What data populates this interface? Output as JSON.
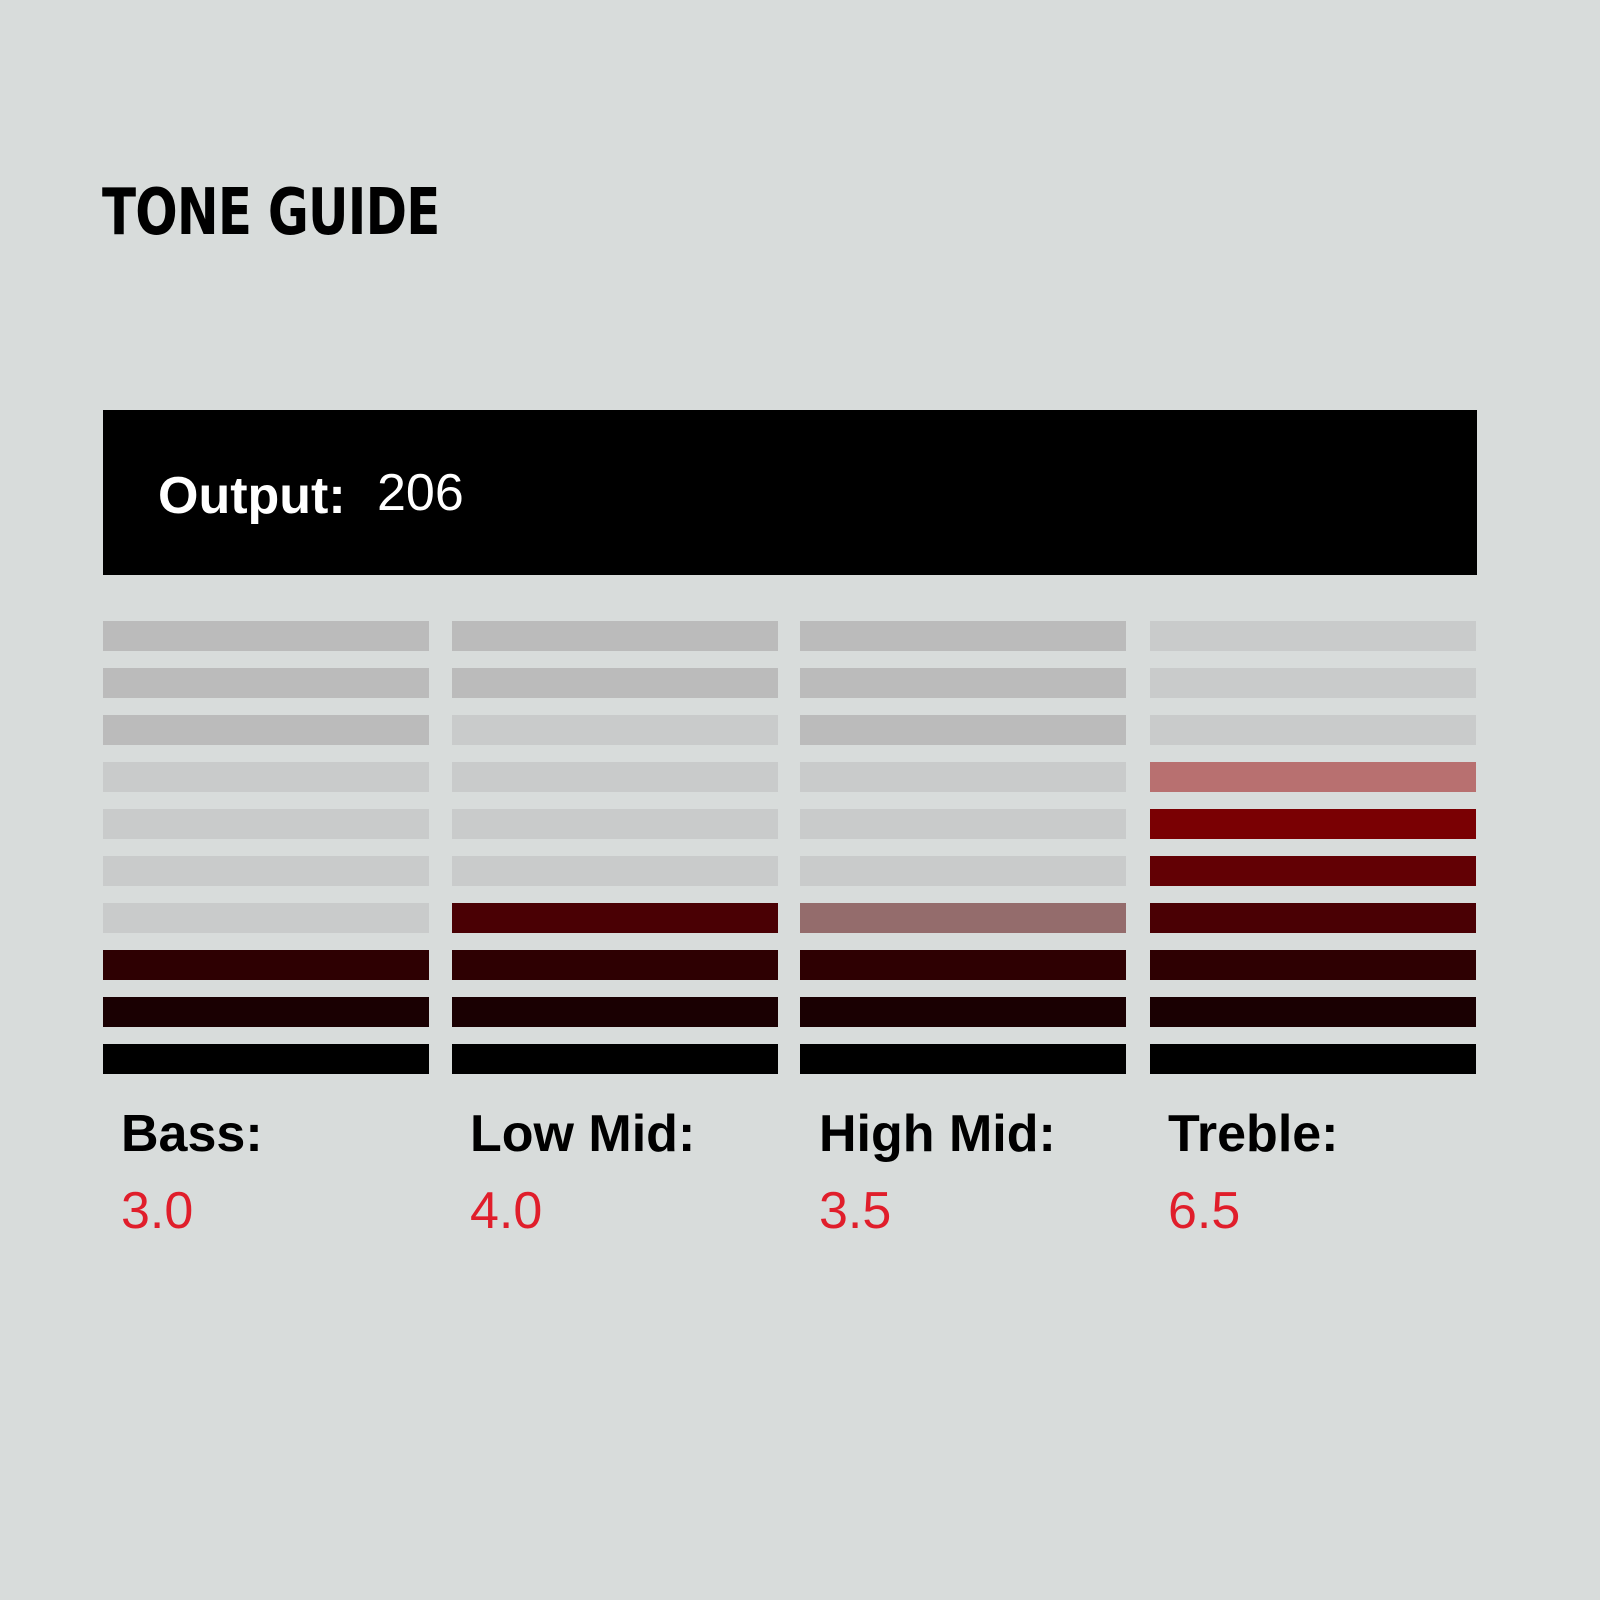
{
  "title": "TONE GUIDE",
  "output": {
    "label": "Output:",
    "value": "206"
  },
  "bands": [
    {
      "label": "Bass:",
      "value": "3.0"
    },
    {
      "label": "Low Mid:",
      "value": "4.0"
    },
    {
      "label": "High Mid:",
      "value": "3.5"
    },
    {
      "label": "Treble:",
      "value": "6.5"
    }
  ],
  "meter_segments": 10,
  "colors": {
    "background": "#d8dcdb",
    "value_text": "#e01e2b",
    "segment_idle": "#bbbbbb",
    "segment_idle_light": "#c9cbcb",
    "lit": [
      "#000000",
      "#1a0002",
      "#2e0002",
      "#4a0004",
      "#620004",
      "#7a0003",
      "#b87070"
    ],
    "half_lit": "#946c6c"
  }
}
